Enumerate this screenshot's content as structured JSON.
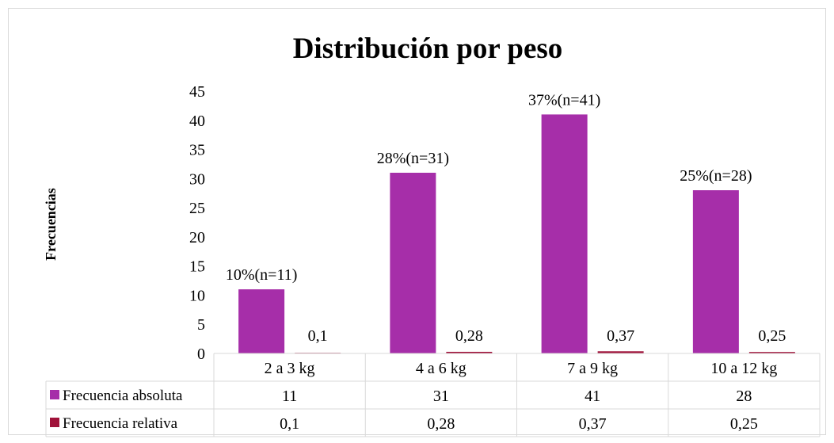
{
  "chart_data": {
    "type": "bar",
    "title": "Distribución por peso",
    "ylabel": "Frecuencias",
    "xlabel": "",
    "ylim": [
      0,
      45
    ],
    "yticks": [
      "0",
      "5",
      "10",
      "15",
      "20",
      "25",
      "30",
      "35",
      "40",
      "45"
    ],
    "categories": [
      "2 a 3 kg",
      "4 a 6 kg",
      "7 a 9 kg",
      "10 a 12 kg"
    ],
    "series": [
      {
        "name": "Frecuencia absoluta",
        "color": "#a62ea9",
        "values": [
          11,
          31,
          41,
          28
        ],
        "labels": [
          "10%(n=11)",
          "28%(n=31)",
          "37%(n=41)",
          "25%(n=28)"
        ],
        "table_values": [
          "11",
          "31",
          "41",
          "28"
        ]
      },
      {
        "name": "Frecuencia relativa",
        "color": "#a0123a",
        "values": [
          0.1,
          0.28,
          0.37,
          0.25
        ],
        "labels": [
          "0,1",
          "0,28",
          "0,37",
          "0,25"
        ],
        "table_values": [
          "0,1",
          "0,28",
          "0,37",
          "0,25"
        ]
      }
    ],
    "grid": false,
    "legend": "data-table"
  }
}
